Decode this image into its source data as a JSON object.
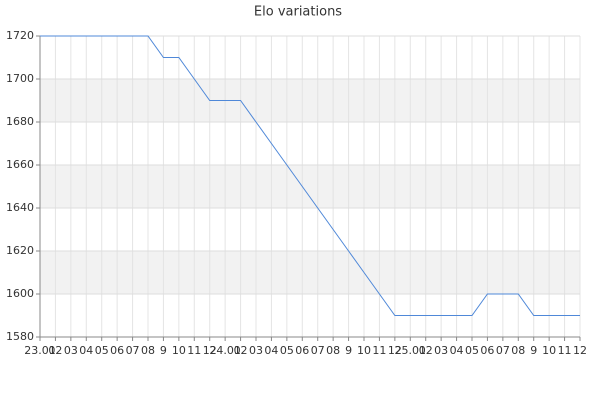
{
  "chart_data": {
    "type": "line",
    "title": "Elo variations",
    "categories": [
      "23.01",
      "02",
      "03",
      "04",
      "05",
      "06",
      "07",
      "08",
      "9",
      "10",
      "11",
      "12",
      "24.01",
      "02",
      "03",
      "04",
      "05",
      "06",
      "07",
      "08",
      "9",
      "10",
      "11",
      "12",
      "25.01",
      "02",
      "03",
      "04",
      "05",
      "06",
      "07",
      "08",
      "9",
      "10",
      "11",
      "12"
    ],
    "values": [
      1720,
      1720,
      1720,
      1720,
      1720,
      1720,
      1720,
      1720,
      1710,
      1710,
      1700,
      1690,
      1690,
      1690,
      1680,
      1670,
      1660,
      1650,
      1640,
      1630,
      1620,
      1610,
      1600,
      1590,
      1590,
      1590,
      1590,
      1590,
      1590,
      1600,
      1600,
      1600,
      1590,
      1590,
      1590,
      1590
    ],
    "color": "#4f88d8",
    "ylim": [
      1580,
      1720
    ],
    "yticks": [
      1580,
      1600,
      1620,
      1640,
      1660,
      1680,
      1700,
      1720
    ],
    "grid": true
  }
}
